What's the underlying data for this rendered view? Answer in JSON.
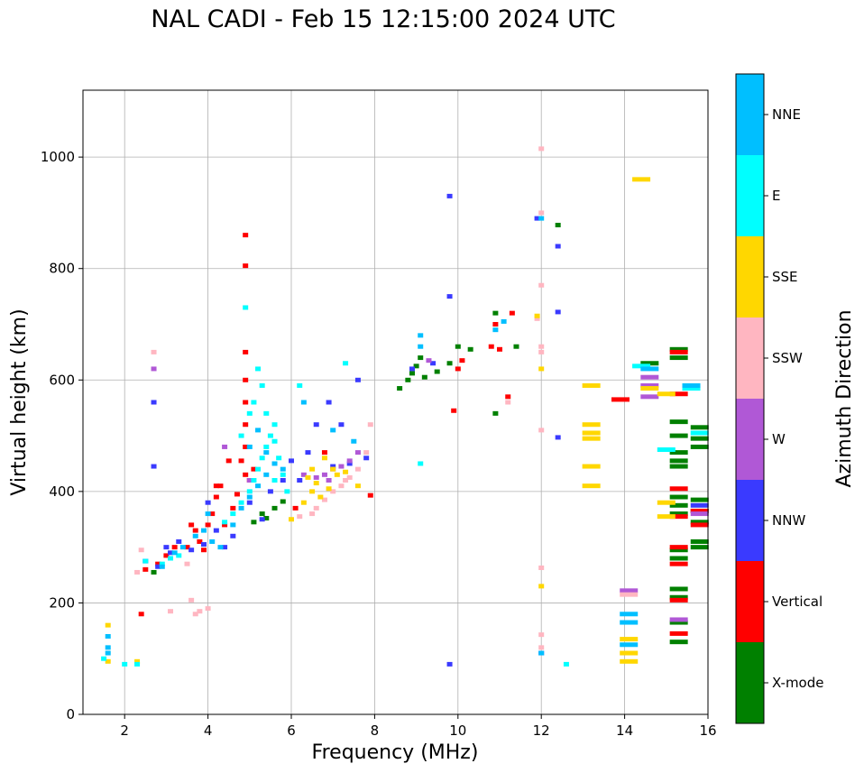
{
  "title": "NAL CADI - Feb 15 12:15:00 2024 UTC",
  "chart_data": {
    "type": "scatter",
    "xlabel": "Frequency (MHz)",
    "ylabel": "Virtual height (km)",
    "xlim": [
      1,
      16
    ],
    "ylim": [
      0,
      1120
    ],
    "xticks": [
      2,
      4,
      6,
      8,
      10,
      12,
      14,
      16
    ],
    "yticks": [
      0,
      200,
      400,
      600,
      800,
      1000
    ],
    "grid": true,
    "colorbar": {
      "label": "Azimuth Direction",
      "categories": [
        {
          "name": "X-mode",
          "color": "#008000"
        },
        {
          "name": "Vertical",
          "color": "#ff0000"
        },
        {
          "name": "NNW",
          "color": "#3a3aff"
        },
        {
          "name": "W",
          "color": "#b058d6"
        },
        {
          "name": "SSW",
          "color": "#ffb6c1"
        },
        {
          "name": "SSE",
          "color": "#ffd700"
        },
        {
          "name": "E",
          "color": "#00ffff"
        },
        {
          "name": "NNE",
          "color": "#00bfff"
        }
      ]
    },
    "series": [
      {
        "name": "X-mode",
        "points": [
          [
            5.1,
            345
          ],
          [
            5.3,
            360
          ],
          [
            5.4,
            352
          ],
          [
            5.6,
            370
          ],
          [
            5.8,
            382
          ],
          [
            8.6,
            585
          ],
          [
            8.8,
            600
          ],
          [
            8.9,
            612
          ],
          [
            9.0,
            625
          ],
          [
            9.1,
            640
          ],
          [
            9.2,
            605
          ],
          [
            9.5,
            615
          ],
          [
            9.8,
            630
          ],
          [
            10.0,
            660
          ],
          [
            10.3,
            655
          ],
          [
            10.9,
            720
          ],
          [
            11.4,
            660
          ],
          [
            12.4,
            878
          ],
          [
            15.3,
            655
          ],
          [
            15.3,
            640
          ],
          [
            15.3,
            525
          ],
          [
            15.3,
            500
          ],
          [
            15.3,
            470
          ],
          [
            15.3,
            455
          ],
          [
            15.3,
            445
          ],
          [
            15.3,
            390
          ],
          [
            15.3,
            375
          ],
          [
            15.3,
            360
          ],
          [
            15.3,
            295
          ],
          [
            15.3,
            280
          ],
          [
            15.3,
            225
          ],
          [
            15.3,
            210
          ],
          [
            15.3,
            165
          ],
          [
            15.3,
            130
          ],
          [
            15.8,
            515
          ],
          [
            15.8,
            495
          ],
          [
            15.8,
            480
          ],
          [
            15.8,
            385
          ],
          [
            15.8,
            365
          ],
          [
            15.8,
            345
          ],
          [
            15.8,
            310
          ],
          [
            15.8,
            300
          ],
          [
            14.6,
            630
          ],
          [
            10.9,
            540
          ],
          [
            2.7,
            255
          ]
        ]
      },
      {
        "name": "Vertical",
        "points": [
          [
            2.4,
            180
          ],
          [
            2.5,
            260
          ],
          [
            2.8,
            270
          ],
          [
            3.0,
            285
          ],
          [
            3.2,
            300
          ],
          [
            3.5,
            300
          ],
          [
            3.7,
            330
          ],
          [
            3.8,
            310
          ],
          [
            3.9,
            295
          ],
          [
            4.0,
            340
          ],
          [
            4.1,
            360
          ],
          [
            4.2,
            390
          ],
          [
            4.3,
            410
          ],
          [
            4.4,
            340
          ],
          [
            4.5,
            455
          ],
          [
            4.6,
            370
          ],
          [
            4.7,
            395
          ],
          [
            4.8,
            455
          ],
          [
            4.9,
            430
          ],
          [
            4.9,
            480
          ],
          [
            4.9,
            520
          ],
          [
            4.9,
            560
          ],
          [
            4.9,
            600
          ],
          [
            4.9,
            650
          ],
          [
            4.9,
            805
          ],
          [
            4.9,
            860
          ],
          [
            5.0,
            420
          ],
          [
            5.1,
            440
          ],
          [
            6.1,
            370
          ],
          [
            6.8,
            470
          ],
          [
            7.9,
            393
          ],
          [
            9.9,
            545
          ],
          [
            10.0,
            620
          ],
          [
            10.1,
            635
          ],
          [
            10.8,
            660
          ],
          [
            10.9,
            700
          ],
          [
            11.0,
            655
          ],
          [
            11.2,
            570
          ],
          [
            15.3,
            575
          ],
          [
            15.3,
            650
          ],
          [
            15.3,
            405
          ],
          [
            15.3,
            355
          ],
          [
            15.3,
            300
          ],
          [
            15.3,
            270
          ],
          [
            15.3,
            205
          ],
          [
            15.3,
            145
          ],
          [
            15.8,
            365
          ],
          [
            15.8,
            340
          ],
          [
            13.9,
            565
          ],
          [
            11.3,
            720
          ],
          [
            4.2,
            410
          ],
          [
            3.6,
            340
          ]
        ]
      },
      {
        "name": "NNW",
        "points": [
          [
            2.5,
            275
          ],
          [
            2.8,
            265
          ],
          [
            3.0,
            300
          ],
          [
            3.3,
            310
          ],
          [
            3.6,
            295
          ],
          [
            3.9,
            305
          ],
          [
            4.2,
            330
          ],
          [
            4.4,
            300
          ],
          [
            4.6,
            320
          ],
          [
            5.0,
            380
          ],
          [
            5.3,
            350
          ],
          [
            5.8,
            420
          ],
          [
            6.2,
            420
          ],
          [
            6.4,
            470
          ],
          [
            6.6,
            520
          ],
          [
            6.9,
            560
          ],
          [
            7.2,
            520
          ],
          [
            7.6,
            600
          ],
          [
            7.8,
            460
          ],
          [
            8.9,
            620
          ],
          [
            9.4,
            630
          ],
          [
            9.8,
            930
          ],
          [
            9.8,
            750
          ],
          [
            9.8,
            90
          ],
          [
            11.9,
            890
          ],
          [
            12.4,
            840
          ],
          [
            12.4,
            722
          ],
          [
            12.4,
            497
          ],
          [
            12.0,
            110
          ],
          [
            15.8,
            375
          ],
          [
            3.1,
            290
          ],
          [
            4.0,
            380
          ],
          [
            5.5,
            400
          ],
          [
            6.0,
            455
          ],
          [
            7.0,
            445
          ],
          [
            7.4,
            450
          ],
          [
            2.7,
            445
          ],
          [
            2.7,
            560
          ]
        ]
      },
      {
        "name": "W",
        "points": [
          [
            6.3,
            430
          ],
          [
            6.6,
            425
          ],
          [
            6.8,
            430
          ],
          [
            7.0,
            440
          ],
          [
            7.2,
            445
          ],
          [
            7.6,
            470
          ],
          [
            9.3,
            635
          ],
          [
            14.6,
            605
          ],
          [
            14.6,
            590
          ],
          [
            14.6,
            570
          ],
          [
            14.1,
            222
          ],
          [
            15.3,
            170
          ],
          [
            15.8,
            360
          ],
          [
            7.4,
            455
          ],
          [
            6.9,
            420
          ],
          [
            2.7,
            620
          ],
          [
            4.4,
            480
          ],
          [
            5.0,
            420
          ]
        ]
      },
      {
        "name": "SSW",
        "points": [
          [
            2.4,
            295
          ],
          [
            2.3,
            255
          ],
          [
            3.1,
            185
          ],
          [
            3.6,
            205
          ],
          [
            3.8,
            185
          ],
          [
            3.7,
            180
          ],
          [
            4.0,
            190
          ],
          [
            6.2,
            355
          ],
          [
            6.5,
            360
          ],
          [
            6.8,
            385
          ],
          [
            7.0,
            400
          ],
          [
            7.2,
            410
          ],
          [
            7.4,
            425
          ],
          [
            7.6,
            440
          ],
          [
            7.8,
            470
          ],
          [
            7.9,
            520
          ],
          [
            12.0,
            900
          ],
          [
            12.0,
            1015
          ],
          [
            12.0,
            770
          ],
          [
            12.0,
            660
          ],
          [
            12.0,
            510
          ],
          [
            12.0,
            263
          ],
          [
            12.0,
            143
          ],
          [
            12.0,
            120
          ],
          [
            12.0,
            650
          ],
          [
            14.1,
            215
          ],
          [
            11.9,
            710
          ],
          [
            11.2,
            560
          ],
          [
            7.3,
            420
          ],
          [
            6.6,
            370
          ],
          [
            3.5,
            270
          ],
          [
            2.7,
            650
          ]
        ]
      },
      {
        "name": "SSE",
        "points": [
          [
            1.6,
            160
          ],
          [
            1.6,
            95
          ],
          [
            2.3,
            95
          ],
          [
            6.3,
            380
          ],
          [
            6.5,
            400
          ],
          [
            6.7,
            390
          ],
          [
            6.9,
            405
          ],
          [
            7.1,
            430
          ],
          [
            7.3,
            435
          ],
          [
            6.4,
            425
          ],
          [
            6.6,
            415
          ],
          [
            6.0,
            350
          ],
          [
            7.6,
            410
          ],
          [
            13.2,
            590
          ],
          [
            13.2,
            520
          ],
          [
            13.2,
            505
          ],
          [
            13.2,
            495
          ],
          [
            13.2,
            445
          ],
          [
            13.2,
            410
          ],
          [
            14.4,
            960
          ],
          [
            14.6,
            585
          ],
          [
            15.0,
            575
          ],
          [
            15.0,
            380
          ],
          [
            15.0,
            355
          ],
          [
            14.1,
            135
          ],
          [
            14.1,
            110
          ],
          [
            14.1,
            95
          ],
          [
            12.0,
            230
          ],
          [
            12.0,
            620
          ],
          [
            11.9,
            715
          ],
          [
            7.0,
            440
          ],
          [
            6.8,
            460
          ],
          [
            6.5,
            440
          ]
        ]
      },
      {
        "name": "E",
        "points": [
          [
            1.5,
            100
          ],
          [
            2.0,
            90
          ],
          [
            2.3,
            90
          ],
          [
            2.5,
            275
          ],
          [
            2.9,
            270
          ],
          [
            3.1,
            280
          ],
          [
            3.3,
            285
          ],
          [
            4.4,
            345
          ],
          [
            4.6,
            360
          ],
          [
            4.8,
            380
          ],
          [
            5.0,
            400
          ],
          [
            5.1,
            420
          ],
          [
            5.2,
            440
          ],
          [
            5.3,
            460
          ],
          [
            5.4,
            480
          ],
          [
            5.5,
            500
          ],
          [
            5.6,
            520
          ],
          [
            5.7,
            460
          ],
          [
            5.8,
            430
          ],
          [
            5.9,
            400
          ],
          [
            5.2,
            620
          ],
          [
            5.3,
            590
          ],
          [
            5.1,
            560
          ],
          [
            5.0,
            540
          ],
          [
            4.9,
            730
          ],
          [
            5.6,
            490
          ],
          [
            9.1,
            450
          ],
          [
            12.6,
            90
          ],
          [
            15.0,
            475
          ],
          [
            15.6,
            585
          ],
          [
            15.8,
            505
          ],
          [
            14.4,
            625
          ],
          [
            6.2,
            590
          ],
          [
            7.3,
            630
          ],
          [
            4.8,
            500
          ],
          [
            5.4,
            540
          ],
          [
            5.6,
            420
          ]
        ]
      },
      {
        "name": "NNE",
        "points": [
          [
            1.6,
            140
          ],
          [
            1.6,
            120
          ],
          [
            1.6,
            110
          ],
          [
            2.9,
            265
          ],
          [
            3.2,
            290
          ],
          [
            3.4,
            300
          ],
          [
            3.7,
            320
          ],
          [
            3.9,
            330
          ],
          [
            4.1,
            310
          ],
          [
            4.3,
            300
          ],
          [
            4.6,
            340
          ],
          [
            4.8,
            370
          ],
          [
            5.0,
            390
          ],
          [
            5.2,
            410
          ],
          [
            5.4,
            430
          ],
          [
            5.0,
            480
          ],
          [
            5.2,
            510
          ],
          [
            5.4,
            470
          ],
          [
            5.6,
            450
          ],
          [
            5.8,
            440
          ],
          [
            9.1,
            680
          ],
          [
            9.1,
            660
          ],
          [
            10.9,
            690
          ],
          [
            11.1,
            705
          ],
          [
            12.0,
            890
          ],
          [
            12.0,
            110
          ],
          [
            14.1,
            180
          ],
          [
            14.1,
            165
          ],
          [
            14.1,
            125
          ],
          [
            14.6,
            620
          ],
          [
            15.6,
            590
          ],
          [
            6.3,
            560
          ],
          [
            7.0,
            510
          ],
          [
            7.5,
            490
          ],
          [
            4.0,
            360
          ]
        ]
      }
    ]
  }
}
